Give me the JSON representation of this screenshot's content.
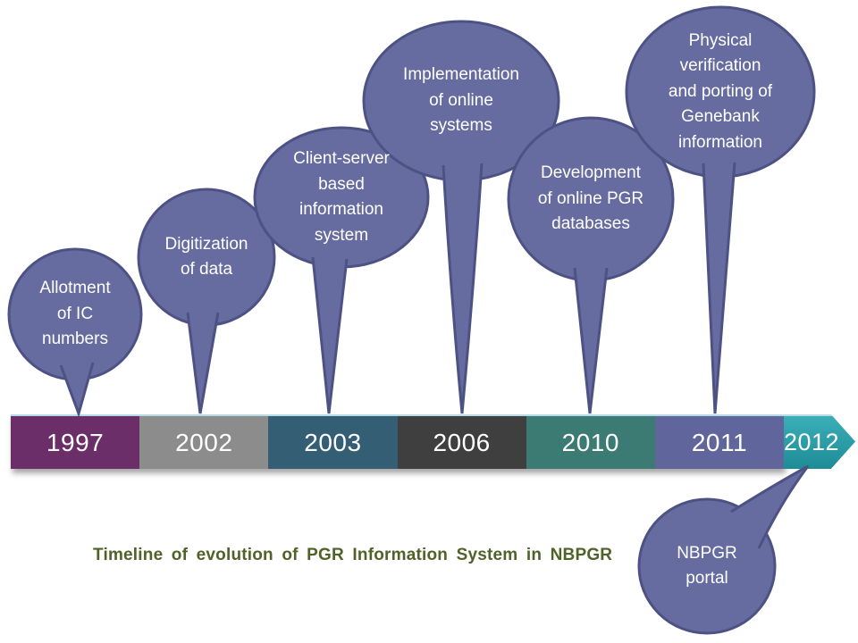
{
  "title": {
    "text": "Timeline of evolution of PGR Information System in NBPGR",
    "color": "#4F6228"
  },
  "timeline": {
    "segments": [
      {
        "year": "1997",
        "color": "#6B2E68"
      },
      {
        "year": "2002",
        "color": "#8C8C8C"
      },
      {
        "year": "2003",
        "color": "#345E74"
      },
      {
        "year": "2006",
        "color": "#3F3F3F"
      },
      {
        "year": "2010",
        "color": "#3B7B73"
      },
      {
        "year": "2011",
        "color": "#60659B"
      }
    ],
    "arrow": {
      "year": "2012",
      "color_top": "#3BAEB7",
      "color_bottom": "#1E8C97"
    }
  },
  "bubbles": [
    {
      "id": "allotment-of-ic-numbers",
      "label": "Allotment\nof IC\nnumbers",
      "points_to": "1997"
    },
    {
      "id": "digitization-of-data",
      "label": "Digitization\nof data",
      "points_to": "2002"
    },
    {
      "id": "client-server-based-information-system",
      "label": "Client-server\nbased\ninformation\nsystem",
      "points_to": "2003"
    },
    {
      "id": "implementation-of-online-systems",
      "label": "Implementation\nof online\nsystems",
      "points_to": "2006"
    },
    {
      "id": "development-of-online-pgr-databases",
      "label": "Development\nof online PGR\ndatabases",
      "points_to": "2010"
    },
    {
      "id": "physical-verification-genebank-information",
      "label": "Physical\nverification\nand porting of\nGenebank\ninformation",
      "points_to": "2011"
    },
    {
      "id": "nbpgr-portal",
      "label": "NBPGR\nportal",
      "points_to": "2012"
    }
  ],
  "bubble_style": {
    "fill": "#676CA0",
    "border": "#4D5284",
    "text_color": "#FFFFFF"
  }
}
